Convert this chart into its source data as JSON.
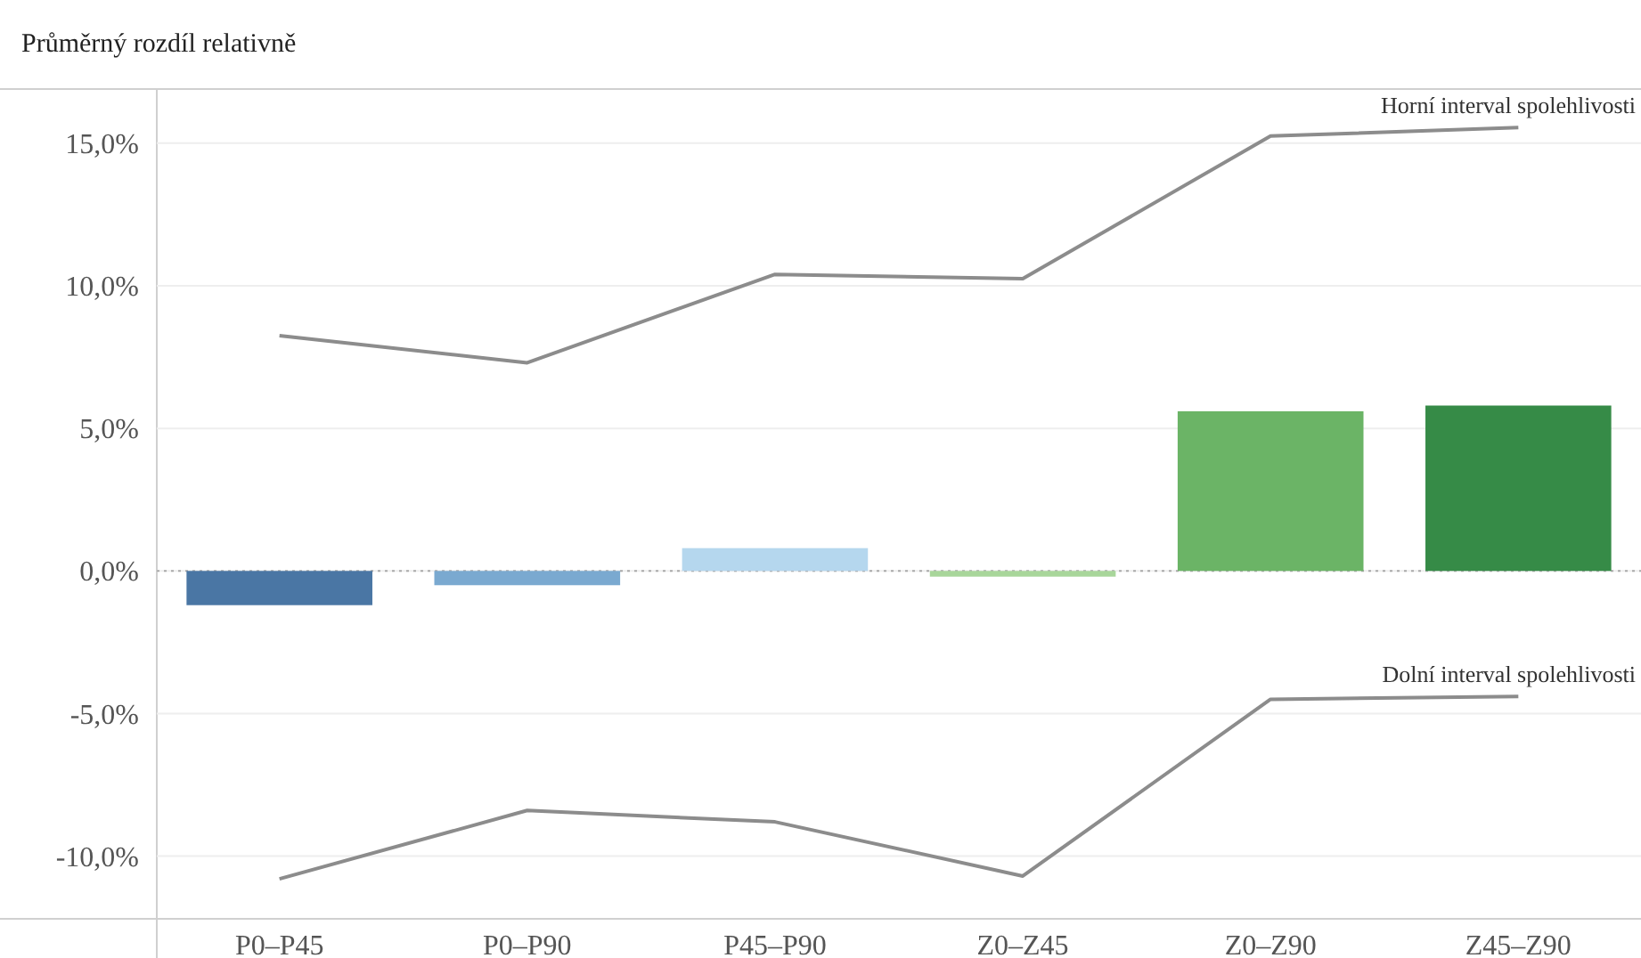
{
  "chart_data": {
    "type": "bar",
    "title": "Průměrný rozdíl relativně",
    "categories": [
      "P0–P45",
      "P0–P90",
      "P45–P90",
      "Z0–Z45",
      "Z0–Z90",
      "Z45–Z90"
    ],
    "series": [
      {
        "colors": [
          "#4a76a4",
          "#7aa9d0",
          "#b5d7ee",
          "#a8d69a",
          "#6bb466",
          "#368b47"
        ],
        "values": [
          -1.2,
          -0.5,
          0.8,
          -0.2,
          5.6,
          5.8
        ]
      },
      {
        "type": "line",
        "name": "Horní interval spolehlivosti",
        "color": "#8c8c8c",
        "values": [
          8.25,
          7.3,
          10.4,
          10.25,
          15.25,
          15.55
        ]
      },
      {
        "type": "line",
        "name": "Dolní interval spolehlivosti",
        "color": "#8c8c8c",
        "values": [
          -10.8,
          -8.4,
          -8.8,
          -10.7,
          -4.5,
          -4.4
        ]
      }
    ],
    "ylim": [
      -12.2,
      16.9
    ],
    "yticks": [
      {
        "value": -10,
        "label": "-10,0%"
      },
      {
        "value": -5,
        "label": "-5,0%"
      },
      {
        "value": 0,
        "label": "0,0%"
      },
      {
        "value": 5,
        "label": "5,0%"
      },
      {
        "value": 10,
        "label": "10,0%"
      },
      {
        "value": 15,
        "label": "15,0%"
      }
    ],
    "grid": "y",
    "ref_lines": [
      {
        "axis": "y",
        "value": 0,
        "color": "#aaaaaa",
        "line_style": "dotted"
      }
    ]
  }
}
